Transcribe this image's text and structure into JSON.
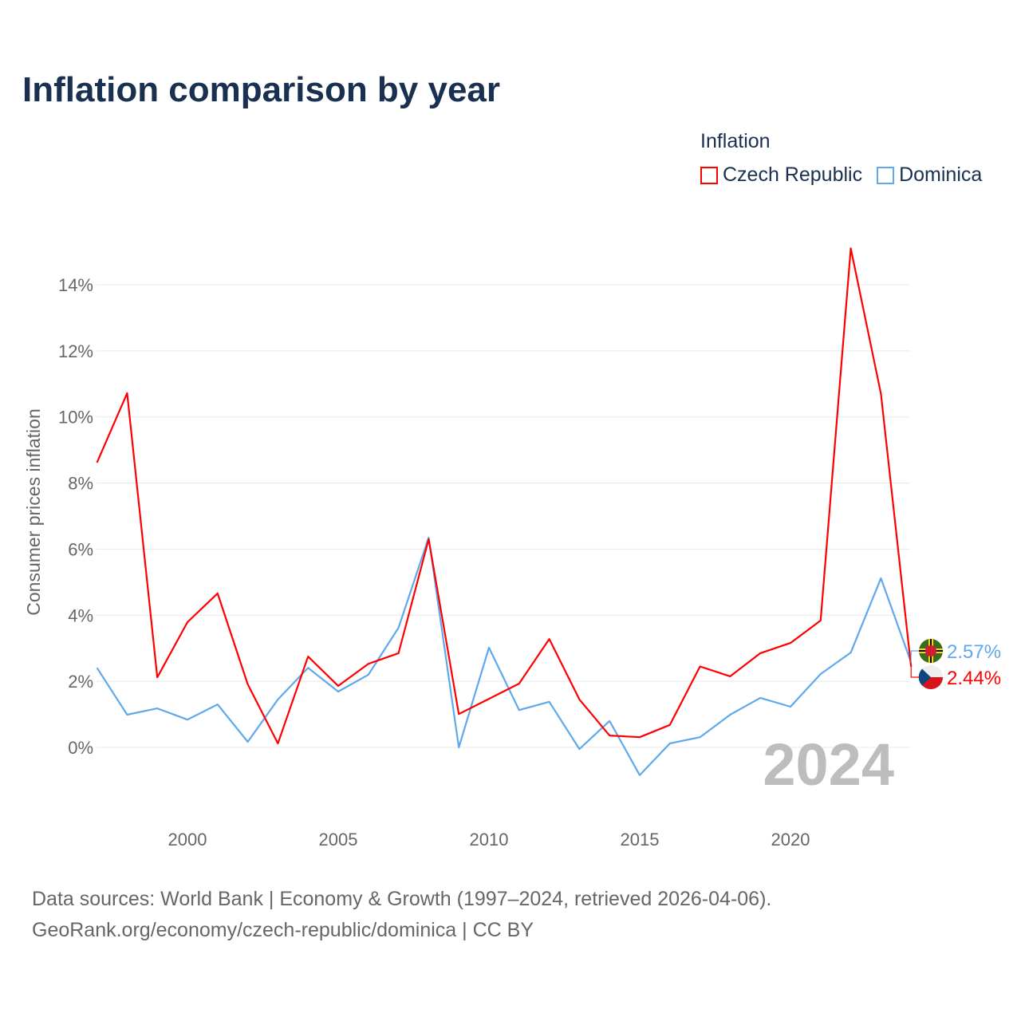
{
  "title": "Inflation comparison by year",
  "legend": {
    "title": "Inflation",
    "items": [
      {
        "label": "Czech Republic",
        "color": "#ff0000"
      },
      {
        "label": "Dominica",
        "color": "#5ea9ed"
      }
    ]
  },
  "watermark_year": "2024",
  "source": {
    "line1": "Data sources: World Bank | Economy & Growth (1997–2024, retrieved 2026-04-06).",
    "line2": "GeoRank.org/economy/czech-republic/dominica | CC BY"
  },
  "chart_data": {
    "type": "line",
    "title": "Inflation comparison by year",
    "xlabel": "",
    "ylabel": "Consumer prices inflation",
    "x": [
      1997,
      1998,
      1999,
      2000,
      2001,
      2002,
      2003,
      2004,
      2005,
      2006,
      2007,
      2008,
      2009,
      2010,
      2011,
      2012,
      2013,
      2014,
      2015,
      2016,
      2017,
      2018,
      2019,
      2020,
      2021,
      2022,
      2023,
      2024
    ],
    "xlim": [
      1997,
      2024
    ],
    "ylim": [
      -2,
      15.5
    ],
    "xticks": [
      2000,
      2005,
      2010,
      2015,
      2020
    ],
    "yticks": [
      0,
      2,
      4,
      6,
      8,
      10,
      12,
      14
    ],
    "ytick_labels": [
      "0%",
      "2%",
      "4%",
      "6%",
      "8%",
      "10%",
      "12%",
      "14%"
    ],
    "grid": true,
    "legend_position": "top-right",
    "series": [
      {
        "name": "Czech Republic",
        "color": "#ff0000",
        "end_label": "2.44%",
        "values": [
          8.62,
          10.72,
          2.12,
          3.79,
          4.66,
          1.91,
          0.12,
          2.75,
          1.86,
          2.53,
          2.85,
          6.3,
          1.01,
          1.47,
          1.93,
          3.28,
          1.45,
          0.36,
          0.31,
          0.68,
          2.45,
          2.15,
          2.85,
          3.16,
          3.84,
          15.1,
          10.7,
          2.44
        ]
      },
      {
        "name": "Dominica",
        "color": "#5ea9ed",
        "end_label": "2.57%",
        "values": [
          2.41,
          0.99,
          1.18,
          0.84,
          1.3,
          0.17,
          1.45,
          2.41,
          1.69,
          2.2,
          3.62,
          6.35,
          0.0,
          3.02,
          1.13,
          1.38,
          -0.05,
          0.8,
          -0.84,
          0.12,
          0.31,
          0.99,
          1.5,
          1.23,
          2.22,
          2.87,
          5.12,
          2.57
        ]
      }
    ]
  }
}
